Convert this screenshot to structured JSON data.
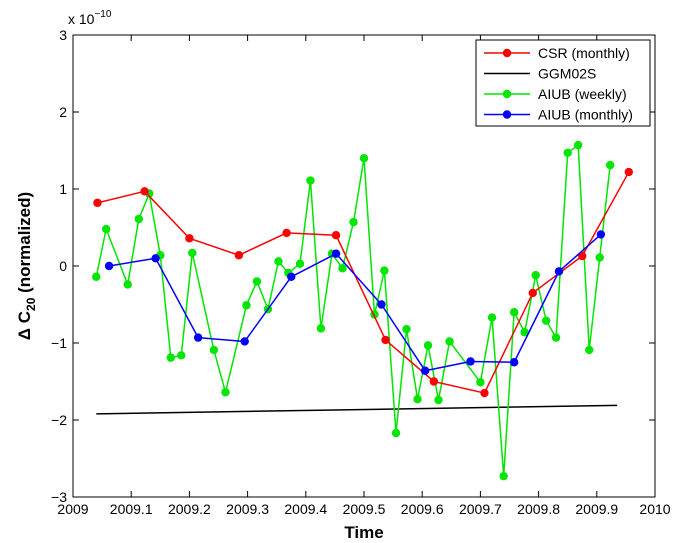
{
  "chart_data": {
    "type": "line",
    "xlabel": "Time",
    "ylabel": "Δ C",
    "ylabel_sub": "20",
    "ylabel_suffix": " (normalized)",
    "y_multiplier_base": "x 10",
    "y_multiplier_exp": "−10",
    "xlim": [
      2009,
      2010
    ],
    "ylim": [
      -3,
      3
    ],
    "xticks": [
      2009,
      2009.1,
      2009.2,
      2009.3,
      2009.4,
      2009.5,
      2009.6,
      2009.7,
      2009.8,
      2009.9,
      2010
    ],
    "xtick_labels": [
      "2009",
      "2009.1",
      "2009.2",
      "2009.3",
      "2009.4",
      "2009.5",
      "2009.6",
      "2009.7",
      "2009.8",
      "2009.9",
      "2010"
    ],
    "yticks": [
      -3,
      -2,
      -1,
      0,
      1,
      2,
      3
    ],
    "ytick_labels": [
      "−3",
      "−2",
      "−1",
      "0",
      "1",
      "2",
      "3"
    ],
    "legend_position": "top-right",
    "grid": false,
    "series": [
      {
        "name": "CSR (monthly)",
        "color": "#ff0000",
        "markers": true,
        "points": [
          [
            2009.042,
            0.82
          ],
          [
            2009.123,
            0.97
          ],
          [
            2009.2,
            0.36
          ],
          [
            2009.285,
            0.14
          ],
          [
            2009.367,
            0.43
          ],
          [
            2009.452,
            0.4
          ],
          [
            2009.537,
            -0.96
          ],
          [
            2009.62,
            -1.5
          ],
          [
            2009.707,
            -1.65
          ],
          [
            2009.79,
            -0.35
          ],
          [
            2009.875,
            0.13
          ],
          [
            2009.955,
            1.22
          ]
        ]
      },
      {
        "name": "GGM02S",
        "color": "#000000",
        "markers": false,
        "points": [
          [
            2009.04,
            -1.92
          ],
          [
            2009.935,
            -1.81
          ]
        ]
      },
      {
        "name": "AIUB (weekly)",
        "color": "#00e600",
        "markers": true,
        "points": [
          [
            2009.04,
            -0.14
          ],
          [
            2009.057,
            0.48
          ],
          [
            2009.094,
            -0.24
          ],
          [
            2009.113,
            0.61
          ],
          [
            2009.131,
            0.94
          ],
          [
            2009.15,
            0.14
          ],
          [
            2009.168,
            -1.19
          ],
          [
            2009.186,
            -1.16
          ],
          [
            2009.205,
            0.17
          ],
          [
            2009.242,
            -1.09
          ],
          [
            2009.262,
            -1.64
          ],
          [
            2009.298,
            -0.51
          ],
          [
            2009.316,
            -0.2
          ],
          [
            2009.335,
            -0.56
          ],
          [
            2009.353,
            0.06
          ],
          [
            2009.37,
            -0.09
          ],
          [
            2009.39,
            0.03
          ],
          [
            2009.408,
            1.11
          ],
          [
            2009.426,
            -0.81
          ],
          [
            2009.445,
            0.16
          ],
          [
            2009.463,
            -0.03
          ],
          [
            2009.482,
            0.57
          ],
          [
            2009.5,
            1.4
          ],
          [
            2009.518,
            -0.63
          ],
          [
            2009.535,
            -0.06
          ],
          [
            2009.555,
            -2.17
          ],
          [
            2009.573,
            -0.82
          ],
          [
            2009.592,
            -1.73
          ],
          [
            2009.61,
            -1.03
          ],
          [
            2009.628,
            -1.74
          ],
          [
            2009.647,
            -0.98
          ],
          [
            2009.7,
            -1.51
          ],
          [
            2009.72,
            -0.67
          ],
          [
            2009.74,
            -2.73
          ],
          [
            2009.758,
            -0.6
          ],
          [
            2009.776,
            -0.86
          ],
          [
            2009.795,
            -0.12
          ],
          [
            2009.813,
            -0.71
          ],
          [
            2009.83,
            -0.93
          ],
          [
            2009.85,
            1.47
          ],
          [
            2009.868,
            1.57
          ],
          [
            2009.887,
            -1.09
          ],
          [
            2009.905,
            0.11
          ],
          [
            2009.923,
            1.31
          ]
        ]
      },
      {
        "name": "AIUB (monthly)",
        "color": "#0000ff",
        "markers": true,
        "points": [
          [
            2009.062,
            0.0
          ],
          [
            2009.142,
            0.1
          ],
          [
            2009.215,
            -0.93
          ],
          [
            2009.295,
            -0.98
          ],
          [
            2009.375,
            -0.14
          ],
          [
            2009.452,
            0.16
          ],
          [
            2009.53,
            -0.5
          ],
          [
            2009.605,
            -1.36
          ],
          [
            2009.683,
            -1.24
          ],
          [
            2009.758,
            -1.25
          ],
          [
            2009.835,
            -0.07
          ],
          [
            2009.907,
            0.41
          ]
        ]
      }
    ]
  }
}
